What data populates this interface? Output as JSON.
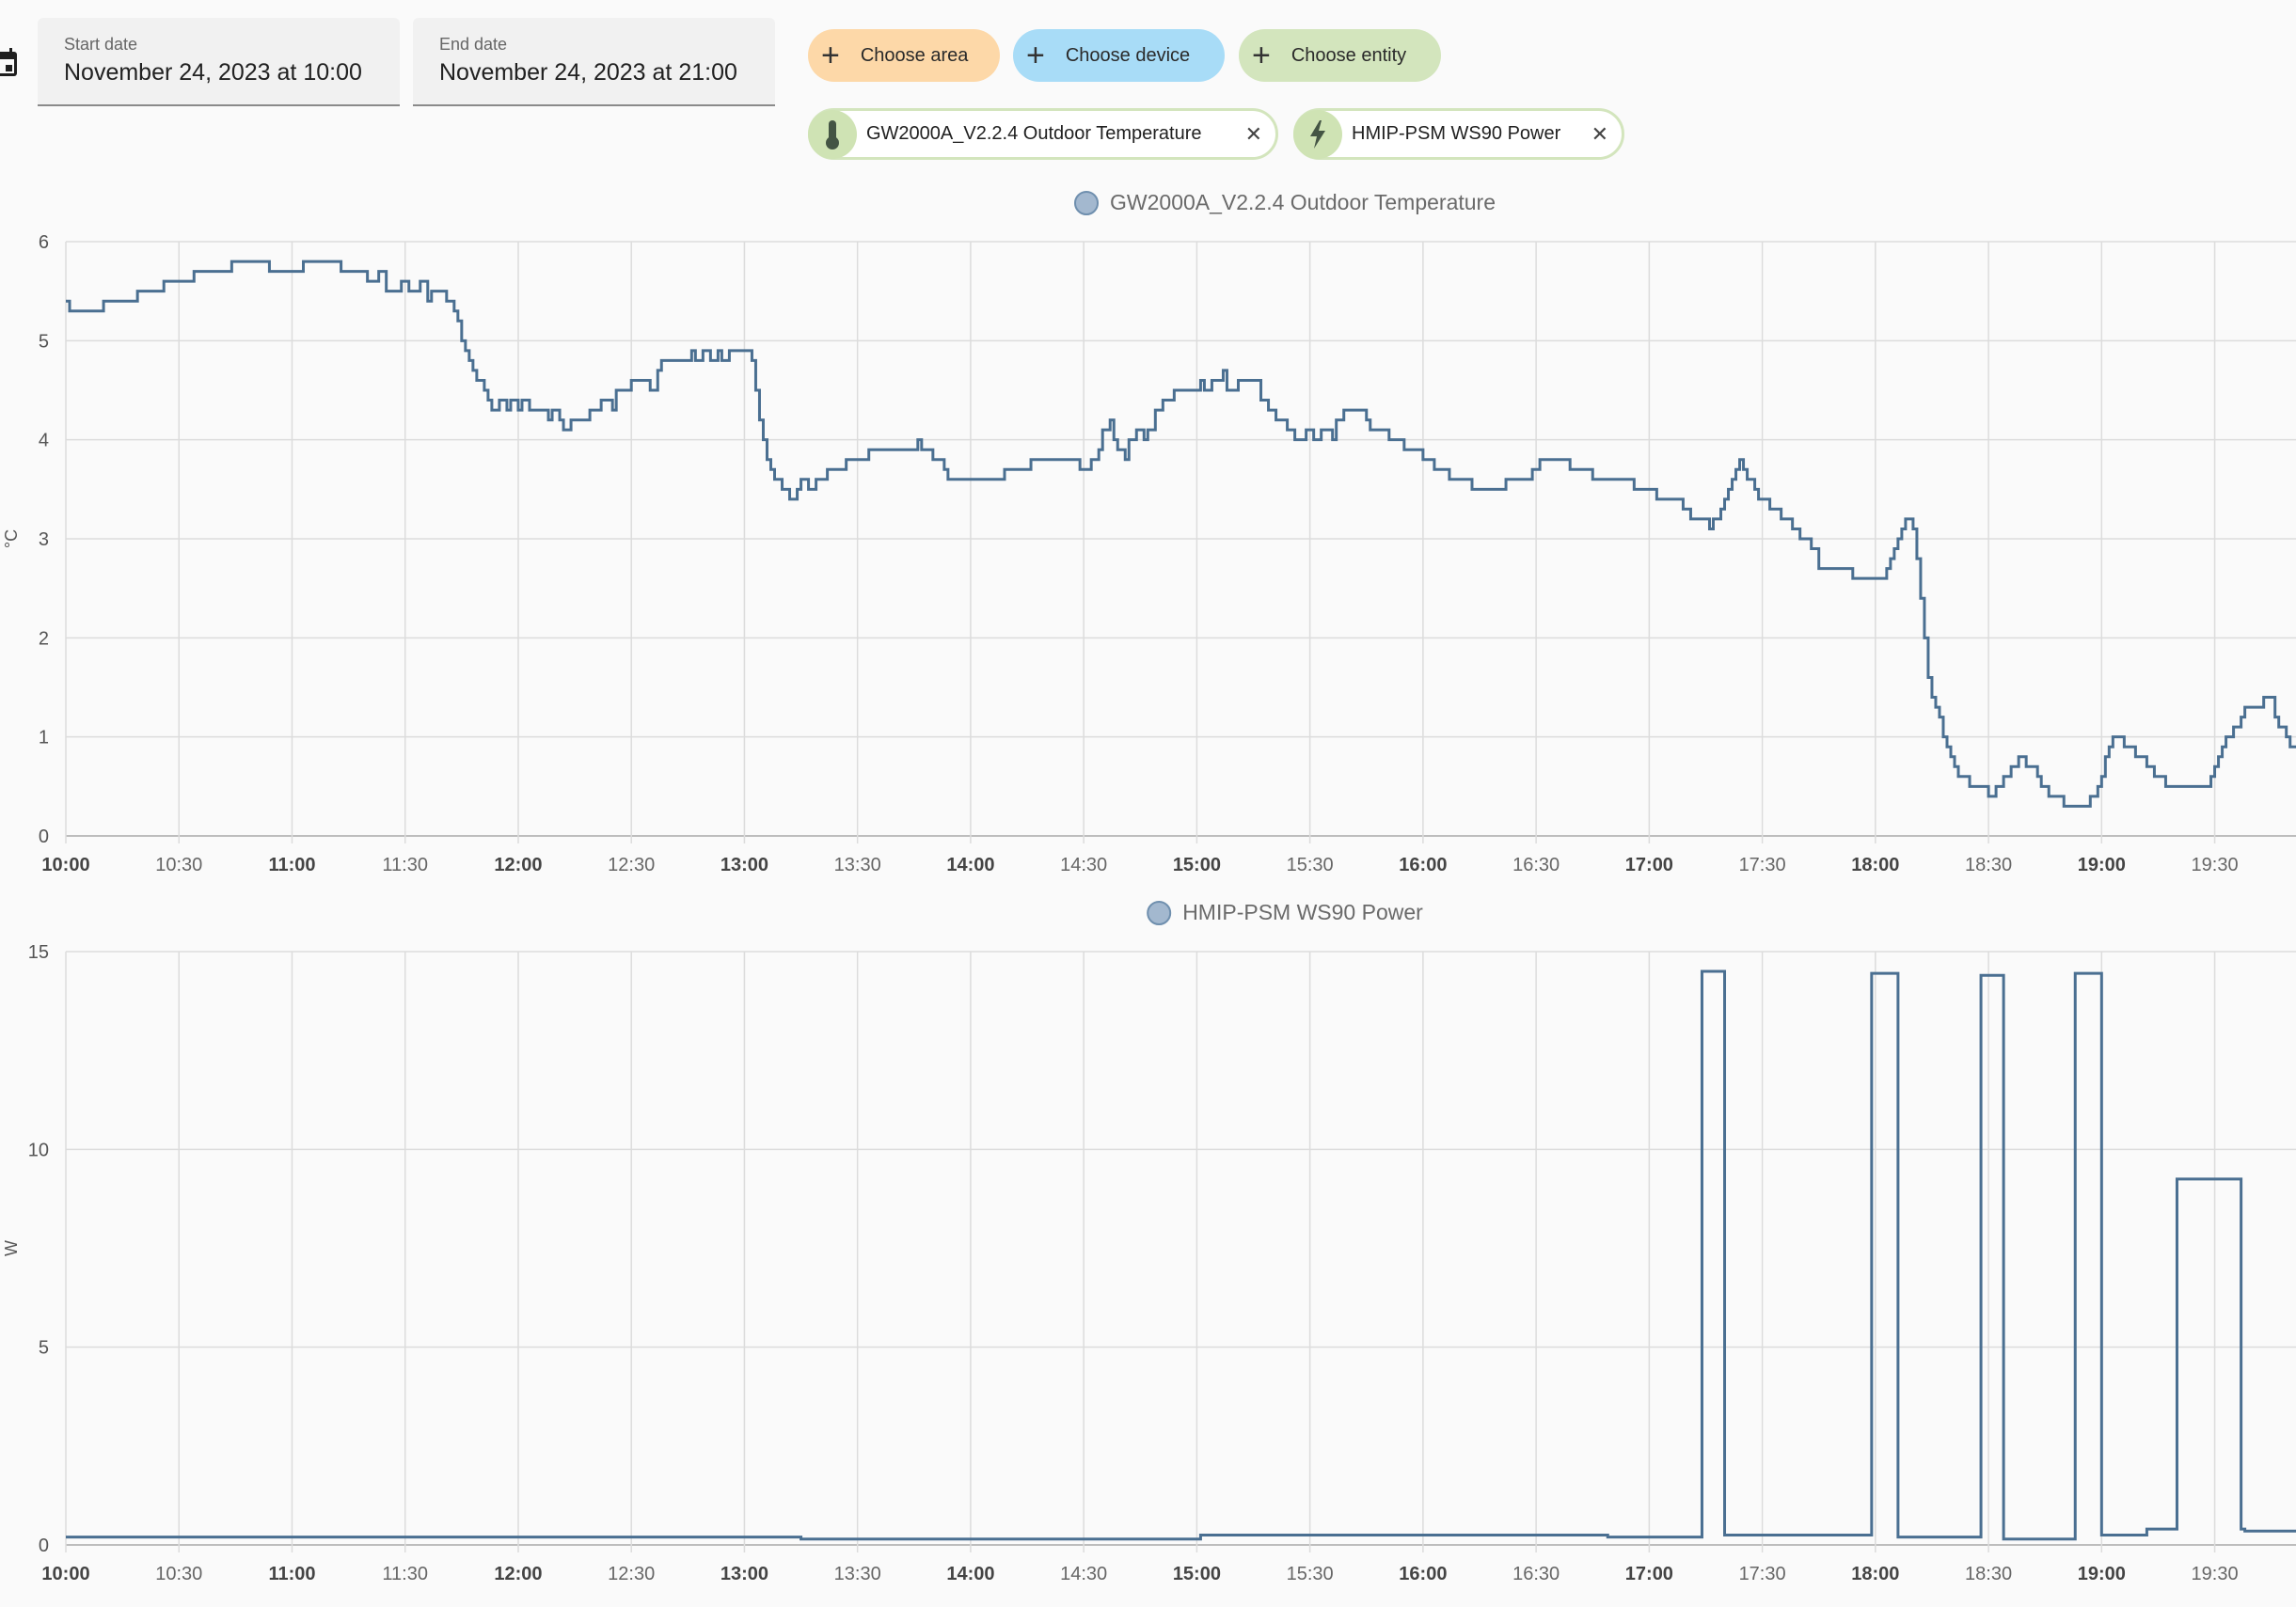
{
  "date_picker": {
    "icon": "calendar-icon",
    "start_label": "Start date",
    "start_value": "November 24, 2023 at 10:00",
    "end_label": "End date",
    "end_value": "November 24, 2023 at 21:00"
  },
  "target_picker": {
    "choose_area": "Choose area",
    "choose_device": "Choose device",
    "choose_entity": "Choose entity",
    "colors": {
      "area": "#fdd8a8",
      "device": "#a8dcf7",
      "entity": "#d3e5bd"
    },
    "selected": [
      {
        "label": "GW2000A_V2.2.4 Outdoor Temperature",
        "icon": "thermometer-icon",
        "remove_icon": "close-icon"
      },
      {
        "label": "HMIP-PSM WS90 Power",
        "icon": "lightning-bolt-icon",
        "remove_icon": "close-icon"
      }
    ]
  },
  "chart_data": [
    {
      "type": "line",
      "step": true,
      "legend": "GW2000A_V2.2.4 Outdoor Temperature",
      "ylabel": "°C",
      "ylim": [
        0,
        6
      ],
      "y_ticks": [
        "0",
        "1",
        "2",
        "3",
        "4",
        "5",
        "6"
      ],
      "xlim": [
        "10:00",
        "21:00"
      ],
      "x_ticks": [
        "10:00",
        "10:30",
        "11:00",
        "11:30",
        "12:00",
        "12:30",
        "13:00",
        "13:30",
        "14:00",
        "14:30",
        "15:00",
        "15:30",
        "16:00",
        "16:30",
        "17:00",
        "17:30",
        "18:00",
        "18:30",
        "19:00",
        "19:30"
      ],
      "grid": true,
      "line_color": "#4a6f91",
      "series": [
        {
          "x": [
            "10:00",
            "10:01",
            "10:10",
            "10:19",
            "10:26",
            "10:34",
            "10:44",
            "10:54",
            "11:03",
            "11:13",
            "11:20",
            "11:23",
            "11:25",
            "11:29",
            "11:31",
            "11:34",
            "11:36",
            "11:37",
            "11:41",
            "11:43",
            "11:44",
            "11:45",
            "11:46",
            "11:47",
            "11:48",
            "11:49",
            "11:51",
            "11:52",
            "11:53",
            "11:55",
            "11:57",
            "11:58",
            "12:00",
            "12:01",
            "12:03",
            "12:08",
            "12:09",
            "12:11",
            "12:12",
            "12:14",
            "12:19",
            "12:22",
            "12:25",
            "12:26",
            "12:30",
            "12:35",
            "12:37",
            "12:38",
            "12:46",
            "12:47",
            "12:49",
            "12:51",
            "12:53",
            "12:54",
            "12:56",
            "13:02",
            "13:03",
            "13:04",
            "13:05",
            "13:06",
            "13:07",
            "13:08",
            "13:10",
            "13:12",
            "13:14",
            "13:15",
            "13:17",
            "13:19",
            "13:22",
            "13:27",
            "13:33",
            "13:46",
            "13:47",
            "13:50",
            "13:53",
            "13:54",
            "14:09",
            "14:16",
            "14:29",
            "14:32",
            "14:34",
            "14:35",
            "14:37",
            "14:38",
            "14:39",
            "14:41",
            "14:42",
            "14:44",
            "14:46",
            "14:47",
            "14:49",
            "14:51",
            "14:54",
            "15:01",
            "15:02",
            "15:04",
            "15:07",
            "15:08",
            "15:11",
            "15:17",
            "15:19",
            "15:21",
            "15:24",
            "15:26",
            "15:29",
            "15:31",
            "15:33",
            "15:36",
            "15:37",
            "15:39",
            "15:45",
            "15:46",
            "15:51",
            "15:55",
            "16:00",
            "16:03",
            "16:07",
            "16:13",
            "16:22",
            "16:29",
            "16:31",
            "16:39",
            "16:45",
            "16:56",
            "17:02",
            "17:09",
            "17:11",
            "17:16",
            "17:17",
            "17:19",
            "17:20",
            "17:21",
            "17:22",
            "17:23",
            "17:24",
            "17:25",
            "17:26",
            "17:28",
            "17:29",
            "17:32",
            "17:35",
            "17:38",
            "17:40",
            "17:43",
            "17:45",
            "17:54",
            "18:03",
            "18:04",
            "18:05",
            "18:06",
            "18:07",
            "18:08",
            "18:10",
            "18:11",
            "18:12",
            "18:13",
            "18:14",
            "18:15",
            "18:16",
            "18:17",
            "18:18",
            "18:19",
            "18:20",
            "18:21",
            "18:22",
            "18:25",
            "18:30",
            "18:32",
            "18:34",
            "18:36",
            "18:38",
            "18:40",
            "18:43",
            "18:44",
            "18:46",
            "18:50",
            "18:57",
            "18:59",
            "19:00",
            "19:01",
            "19:02",
            "19:03",
            "19:06",
            "19:09",
            "19:12",
            "19:14",
            "19:17",
            "19:29",
            "19:30",
            "19:31",
            "19:32",
            "19:33",
            "19:35",
            "19:37",
            "19:38",
            "19:43",
            "19:46",
            "19:47",
            "19:49",
            "19:50"
          ],
          "y": [
            5.4,
            5.3,
            5.4,
            5.5,
            5.6,
            5.7,
            5.8,
            5.7,
            5.8,
            5.7,
            5.6,
            5.7,
            5.5,
            5.6,
            5.5,
            5.6,
            5.4,
            5.5,
            5.4,
            5.3,
            5.2,
            5.0,
            4.9,
            4.8,
            4.7,
            4.6,
            4.5,
            4.4,
            4.3,
            4.4,
            4.3,
            4.4,
            4.3,
            4.4,
            4.3,
            4.2,
            4.3,
            4.2,
            4.1,
            4.2,
            4.3,
            4.4,
            4.3,
            4.5,
            4.6,
            4.5,
            4.7,
            4.8,
            4.9,
            4.8,
            4.9,
            4.8,
            4.9,
            4.8,
            4.9,
            4.8,
            4.5,
            4.2,
            4.0,
            3.8,
            3.7,
            3.6,
            3.5,
            3.4,
            3.5,
            3.6,
            3.5,
            3.6,
            3.7,
            3.8,
            3.9,
            4.0,
            3.9,
            3.8,
            3.7,
            3.6,
            3.7,
            3.8,
            3.7,
            3.8,
            3.9,
            4.1,
            4.2,
            4.0,
            3.9,
            3.8,
            4.0,
            4.1,
            4.0,
            4.1,
            4.3,
            4.4,
            4.5,
            4.6,
            4.5,
            4.6,
            4.7,
            4.5,
            4.6,
            4.4,
            4.3,
            4.2,
            4.1,
            4.0,
            4.1,
            4.0,
            4.1,
            4.0,
            4.2,
            4.3,
            4.2,
            4.1,
            4.0,
            3.9,
            3.8,
            3.7,
            3.6,
            3.5,
            3.6,
            3.7,
            3.8,
            3.7,
            3.6,
            3.5,
            3.4,
            3.3,
            3.2,
            3.1,
            3.2,
            3.3,
            3.4,
            3.5,
            3.6,
            3.7,
            3.8,
            3.7,
            3.6,
            3.5,
            3.4,
            3.3,
            3.2,
            3.1,
            3.0,
            2.9,
            2.7,
            2.6,
            2.7,
            2.8,
            2.9,
            3.0,
            3.1,
            3.2,
            3.1,
            2.8,
            2.4,
            2.0,
            1.6,
            1.4,
            1.3,
            1.2,
            1.0,
            0.9,
            0.8,
            0.7,
            0.6,
            0.5,
            0.4,
            0.5,
            0.6,
            0.7,
            0.8,
            0.7,
            0.6,
            0.5,
            0.4,
            0.3,
            0.4,
            0.5,
            0.6,
            0.8,
            0.9,
            1.0,
            0.9,
            0.8,
            0.7,
            0.6,
            0.5,
            0.6,
            0.7,
            0.8,
            0.9,
            1.0,
            1.1,
            1.2,
            1.3,
            1.4,
            1.2,
            1.1,
            1.0,
            0.9
          ]
        }
      ]
    },
    {
      "type": "line",
      "step": true,
      "legend": "HMIP-PSM WS90 Power",
      "ylabel": "W",
      "ylim": [
        0,
        15
      ],
      "y_ticks": [
        "0",
        "5",
        "10",
        "15"
      ],
      "xlim": [
        "10:00",
        "21:00"
      ],
      "x_ticks": [
        "10:00",
        "10:30",
        "11:00",
        "11:30",
        "12:00",
        "12:30",
        "13:00",
        "13:30",
        "14:00",
        "14:30",
        "15:00",
        "15:30",
        "16:00",
        "16:30",
        "17:00",
        "17:30",
        "18:00",
        "18:30",
        "19:00",
        "19:30"
      ],
      "grid": true,
      "line_color": "#4a6f91",
      "series": [
        {
          "x": [
            "10:00",
            "13:15",
            "15:01",
            "16:49",
            "17:14",
            "17:20",
            "17:59",
            "18:06",
            "18:28",
            "18:34",
            "18:53",
            "19:00",
            "19:12",
            "19:20",
            "19:37",
            "19:38",
            "19:52"
          ],
          "y": [
            0.2,
            0.15,
            0.25,
            0.2,
            14.5,
            0.25,
            14.45,
            0.2,
            14.4,
            0.15,
            14.45,
            0.25,
            0.4,
            9.25,
            0.4,
            0.35,
            0.35
          ]
        }
      ]
    }
  ]
}
